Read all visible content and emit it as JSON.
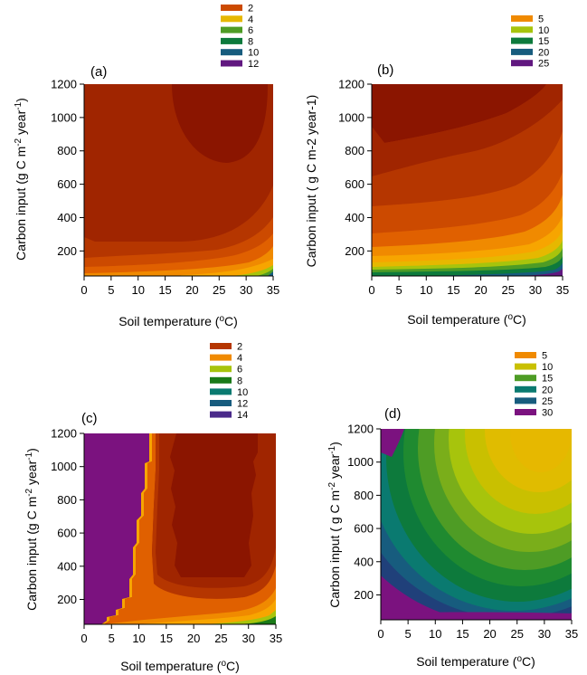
{
  "colors": {
    "dark_red": "#8b1500",
    "red": "#a02500",
    "red_orange": "#b53600",
    "orange_red": "#cc4a00",
    "dark_orange": "#e06000",
    "orange": "#f08a00",
    "light_orange": "#f7a500",
    "gold": "#e6b800",
    "yellow_green": "#a7c40c",
    "green": "#4e9c25",
    "dark_green": "#0d7a3c",
    "teal": "#0a7a70",
    "blue": "#175c7e",
    "dark_blue": "#20407a",
    "purple": "#611880",
    "magenta_purple": "#7b127f"
  },
  "chart_data": [
    {
      "panel": "(a)",
      "type": "heatmap",
      "xlabel": "Soil temperature (oC)",
      "ylabel": "Carbon input (g C m-2 year-1)",
      "x_ticks": [
        0,
        5,
        10,
        15,
        20,
        25,
        30,
        35
      ],
      "y_ticks": [
        200,
        400,
        600,
        800,
        1000,
        1200
      ],
      "xlim": [
        0,
        35
      ],
      "ylim": [
        50,
        1200
      ],
      "legend": {
        "position": "top",
        "entries": [
          {
            "label": "2",
            "color": "#cc4a00"
          },
          {
            "label": "4",
            "color": "#e6b800"
          },
          {
            "label": "6",
            "color": "#4e9c25"
          },
          {
            "label": "8",
            "color": "#0d7a3c"
          },
          {
            "label": "10",
            "color": "#175c7e"
          },
          {
            "label": "12",
            "color": "#611880"
          }
        ]
      }
    },
    {
      "panel": "(b)",
      "type": "heatmap",
      "xlabel": "Soil temperature (oC)",
      "ylabel": "Carbon input ( g C m-2 year-1)",
      "x_ticks": [
        0,
        5,
        10,
        15,
        20,
        25,
        30,
        35
      ],
      "y_ticks": [
        200,
        400,
        600,
        800,
        1000,
        1200
      ],
      "xlim": [
        0,
        35
      ],
      "ylim": [
        50,
        1200
      ],
      "legend": {
        "position": "top",
        "entries": [
          {
            "label": "5",
            "color": "#f08a00"
          },
          {
            "label": "10",
            "color": "#a7c40c"
          },
          {
            "label": "15",
            "color": "#0d7a3c"
          },
          {
            "label": "20",
            "color": "#175c7e"
          },
          {
            "label": "25",
            "color": "#611880"
          }
        ]
      }
    },
    {
      "panel": "(c)",
      "type": "heatmap",
      "xlabel": "Soil temperature (oC)",
      "ylabel": "Carbon input (g C m-2 year-1)",
      "x_ticks": [
        0,
        5,
        10,
        15,
        20,
        25,
        30,
        35
      ],
      "y_ticks": [
        200,
        400,
        600,
        800,
        1000,
        1200
      ],
      "xlim": [
        0,
        35
      ],
      "ylim": [
        50,
        1200
      ],
      "legend": {
        "position": "top",
        "entries": [
          {
            "label": "2",
            "color": "#b53600"
          },
          {
            "label": "4",
            "color": "#f08a00"
          },
          {
            "label": "6",
            "color": "#a7c40c"
          },
          {
            "label": "8",
            "color": "#1a7a18"
          },
          {
            "label": "10",
            "color": "#0a7a70"
          },
          {
            "label": "12",
            "color": "#175c7e"
          },
          {
            "label": "14",
            "color": "#4a2a8a"
          }
        ]
      }
    },
    {
      "panel": "(d)",
      "type": "heatmap",
      "xlabel": "Soil temperature (oC)",
      "ylabel": "Carbon input ( g C m-2 year-1)",
      "x_ticks": [
        0,
        5,
        10,
        15,
        20,
        25,
        30,
        35
      ],
      "y_ticks": [
        200,
        400,
        600,
        800,
        1000,
        1200
      ],
      "xlim": [
        0,
        35
      ],
      "ylim": [
        50,
        1200
      ],
      "legend": {
        "position": "top",
        "entries": [
          {
            "label": "5",
            "color": "#f08a00"
          },
          {
            "label": "10",
            "color": "#c9c000"
          },
          {
            "label": "15",
            "color": "#4e9c25"
          },
          {
            "label": "20",
            "color": "#0a7a70"
          },
          {
            "label": "25",
            "color": "#175c7e"
          },
          {
            "label": "30",
            "color": "#7b127f"
          }
        ]
      }
    }
  ]
}
